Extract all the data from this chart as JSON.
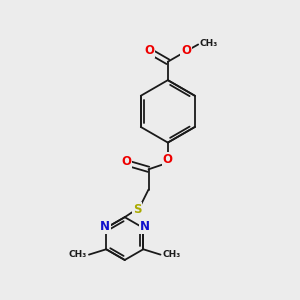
{
  "bg_color": "#ececec",
  "bond_color": "#1a1a1a",
  "bond_width": 1.3,
  "dbo": 0.055,
  "atom_colors": {
    "O": "#ee0000",
    "N": "#1111cc",
    "S": "#aaaa00",
    "C": "#1a1a1a"
  },
  "font_size": 7.5,
  "fig_size": [
    3.0,
    3.0
  ],
  "dpi": 100,
  "xlim": [
    0,
    10
  ],
  "ylim": [
    0,
    10
  ]
}
